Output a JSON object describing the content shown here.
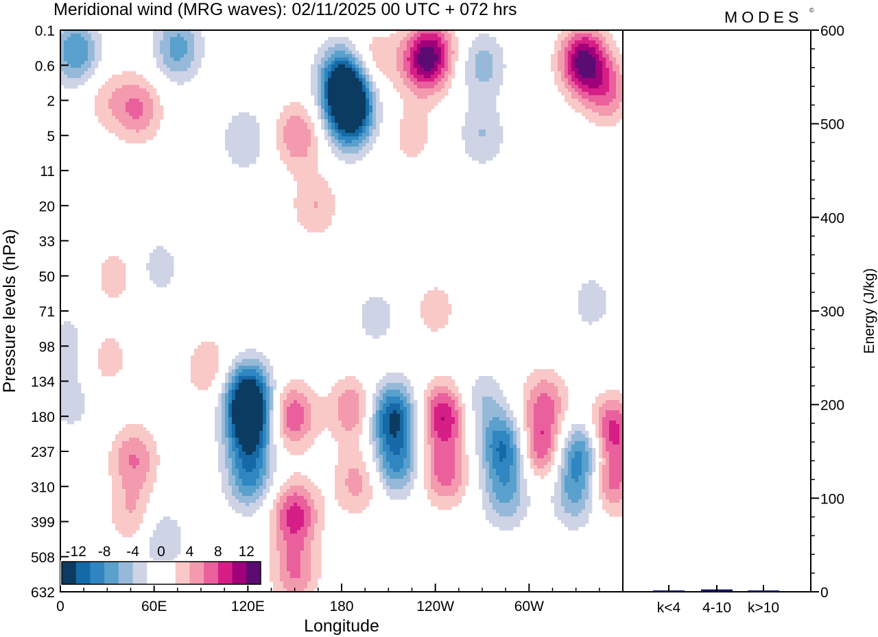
{
  "title": "Meridional wind (MRG waves):  02/11/2025  00 UTC  + 072 hrs",
  "brand": "MODES",
  "brand_mark": "©",
  "chart_data": [
    {
      "type": "heatmap",
      "variable": "Meridional wind (MRG waves)",
      "xlabel": "Longitude",
      "ylabel": "Pressure levels (hPa)",
      "x_ticks": [
        "0",
        "60E",
        "120E",
        "180",
        "120W",
        "60W"
      ],
      "x_tick_values": [
        0,
        60,
        120,
        180,
        240,
        300
      ],
      "xlim": [
        0,
        360
      ],
      "y_ticks": [
        "0.1",
        "0.6",
        "2",
        "5",
        "11",
        "20",
        "33",
        "50",
        "71",
        "98",
        "134",
        "180",
        "237",
        "310",
        "399",
        "508",
        "632"
      ],
      "colorbar": {
        "labels": [
          "-12",
          "-8",
          "-4",
          "0",
          "4",
          "8",
          "12"
        ],
        "levels": [
          -14,
          -12,
          -10,
          -8,
          -6,
          -4,
          -2,
          0,
          2,
          4,
          6,
          8,
          10,
          12,
          14
        ],
        "colors": [
          "#0b3b60",
          "#1569a6",
          "#2f86c0",
          "#5aa0cc",
          "#96b9d9",
          "#ced3e6",
          "#ffffff",
          "#ffffff",
          "#f9c9c7",
          "#f39aae",
          "#e9609d",
          "#d51e86",
          "#a0007a",
          "#5c0b73"
        ]
      },
      "blobs": [
        {
          "lon": 120,
          "p": 150,
          "value": -14
        },
        {
          "lon": 121,
          "p": 200,
          "value": -12
        },
        {
          "lon": 121,
          "p": 290,
          "value": -8
        },
        {
          "lon": 148,
          "p": 180,
          "value": 8
        },
        {
          "lon": 150,
          "p": 380,
          "value": 9
        },
        {
          "lon": 150,
          "p": 560,
          "value": 6
        },
        {
          "lon": 187,
          "p": 170,
          "value": 6
        },
        {
          "lon": 190,
          "p": 300,
          "value": 5
        },
        {
          "lon": 213,
          "p": 180,
          "value": -12
        },
        {
          "lon": 215,
          "p": 260,
          "value": -8
        },
        {
          "lon": 245,
          "p": 180,
          "value": 10
        },
        {
          "lon": 246,
          "p": 280,
          "value": 7
        },
        {
          "lon": 270,
          "p": 160,
          "value": -4
        },
        {
          "lon": 284,
          "p": 230,
          "value": -10
        },
        {
          "lon": 285,
          "p": 330,
          "value": -6
        },
        {
          "lon": 307,
          "p": 230,
          "value": 8
        },
        {
          "lon": 310,
          "p": 160,
          "value": 6
        },
        {
          "lon": 333,
          "p": 240,
          "value": -9
        },
        {
          "lon": 330,
          "p": 330,
          "value": -6
        },
        {
          "lon": 353,
          "p": 200,
          "value": 9
        },
        {
          "lon": 352,
          "p": 300,
          "value": 7
        },
        {
          "lon": 5,
          "p": 95,
          "value": -3
        },
        {
          "lon": 7,
          "p": 160,
          "value": -3
        },
        {
          "lon": 30,
          "p": 110,
          "value": 3
        },
        {
          "lon": 47,
          "p": 250,
          "value": 6
        },
        {
          "lon": 46,
          "p": 380,
          "value": 4
        },
        {
          "lon": 65,
          "p": 450,
          "value": -4
        },
        {
          "lon": 95,
          "p": 120,
          "value": 4
        },
        {
          "lon": 202,
          "p": 75,
          "value": -3
        },
        {
          "lon": 240,
          "p": 70,
          "value": 3
        },
        {
          "lon": 232,
          "p": 0.5,
          "value": 9
        },
        {
          "lon": 240,
          "p": 0.3,
          "value": 6
        },
        {
          "lon": 335,
          "p": 0.5,
          "value": 13
        },
        {
          "lon": 350,
          "p": 1.5,
          "value": 6
        },
        {
          "lon": 185,
          "p": 2.1,
          "value": -14
        },
        {
          "lon": 180,
          "p": 0.9,
          "value": -10
        },
        {
          "lon": 185,
          "p": 3.8,
          "value": -6
        },
        {
          "lon": 10,
          "p": 0.3,
          "value": -8
        },
        {
          "lon": 75,
          "p": 0.25,
          "value": -7
        },
        {
          "lon": 50,
          "p": 2.5,
          "value": 6
        },
        {
          "lon": 30,
          "p": 2.0,
          "value": 3
        },
        {
          "lon": 152,
          "p": 5,
          "value": 6
        },
        {
          "lon": 118,
          "p": 5.5,
          "value": -4
        },
        {
          "lon": 163,
          "p": 20,
          "value": 4
        },
        {
          "lon": 270,
          "p": 5,
          "value": -4
        },
        {
          "lon": 225,
          "p": 5,
          "value": 3
        },
        {
          "lon": 200,
          "p": 0.5,
          "value": 4
        },
        {
          "lon": 270,
          "p": 0.6,
          "value": -5
        },
        {
          "lon": 35,
          "p": 50,
          "value": 3
        },
        {
          "lon": 63,
          "p": 45,
          "value": -3
        },
        {
          "lon": 340,
          "p": 65,
          "value": -3
        }
      ]
    },
    {
      "type": "bar",
      "title": "",
      "categories": [
        "k<4",
        "4-10",
        "k>10"
      ],
      "values": [
        0.3,
        2.5,
        0.2
      ],
      "ylabel": "Energy (J/kg)",
      "ylim": [
        0,
        600
      ],
      "y_ticks": [
        "0",
        "100",
        "200",
        "300",
        "400",
        "500",
        "600"
      ],
      "bar_color": "#101060"
    }
  ]
}
